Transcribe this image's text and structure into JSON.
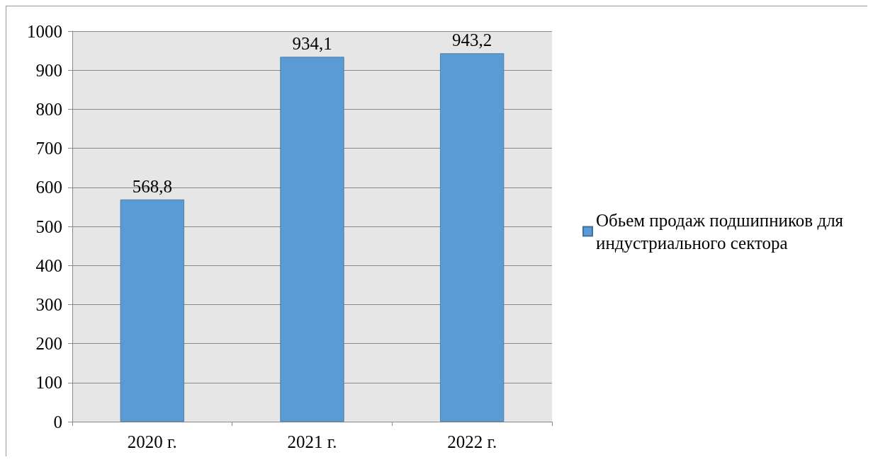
{
  "chart_data": {
    "type": "bar",
    "categories": [
      "2020 г.",
      "2021 г.",
      "2022 г."
    ],
    "series": [
      {
        "name": "Обьем продаж подшипников для индустриального сектора",
        "color": "#5b9bd5",
        "values": [
          568.8,
          934.1,
          943.2
        ],
        "value_labels": [
          "568,8",
          "934,1",
          "943,2"
        ]
      }
    ],
    "ylim": [
      0,
      1000
    ],
    "yticks": [
      0,
      100,
      200,
      300,
      400,
      500,
      600,
      700,
      800,
      900,
      1000
    ],
    "grid": "y",
    "legend": "right"
  }
}
